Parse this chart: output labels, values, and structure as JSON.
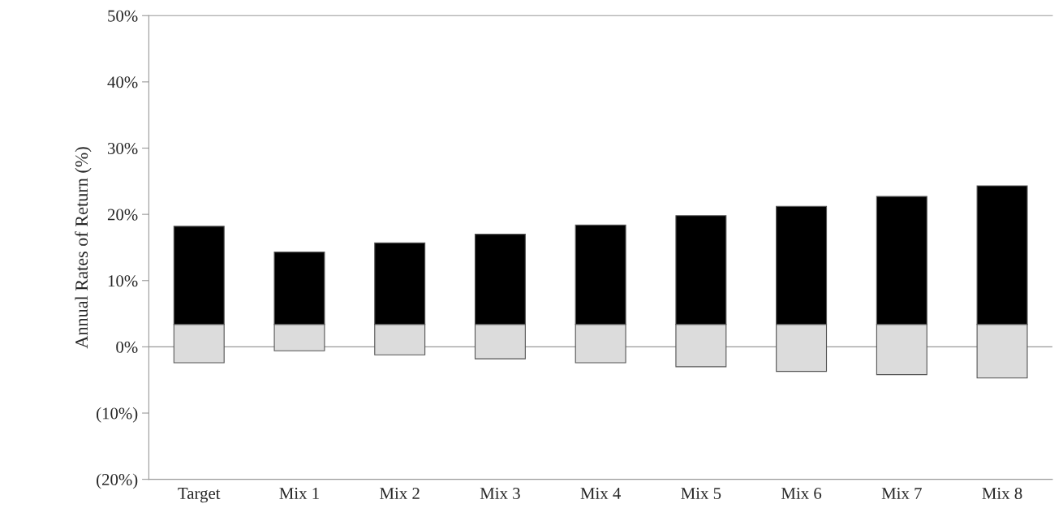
{
  "chart_data": {
    "type": "bar",
    "ylabel": "Annual Rates of Return (%)",
    "categories": [
      "Target",
      "Mix 1",
      "Mix 2",
      "Mix 3",
      "Mix 4",
      "Mix 5",
      "Mix 6",
      "Mix 7",
      "Mix 8"
    ],
    "series": [
      {
        "color": "#dcdcdc",
        "base": [
          -2.4,
          -0.6,
          -1.2,
          -1.8,
          -2.4,
          -3.0,
          -3.7,
          -4.2,
          -4.7
        ],
        "values": [
          5.8,
          4.0,
          4.6,
          5.2,
          5.8,
          6.4,
          7.1,
          7.6,
          8.1
        ]
      },
      {
        "color": "#000000",
        "base": [
          3.4,
          3.4,
          3.4,
          3.4,
          3.4,
          3.4,
          3.4,
          3.4,
          3.4
        ],
        "values": [
          14.8,
          10.9,
          12.3,
          13.6,
          15.0,
          16.4,
          17.8,
          19.3,
          20.9
        ]
      }
    ],
    "ylim": [
      -20,
      50
    ],
    "yticks": [
      {
        "value": -20,
        "label": "(20%)"
      },
      {
        "value": -10,
        "label": "(10%)"
      },
      {
        "value": 0,
        "label": "0%"
      },
      {
        "value": 10,
        "label": "10%"
      },
      {
        "value": 20,
        "label": "20%"
      },
      {
        "value": 30,
        "label": "30%"
      },
      {
        "value": 40,
        "label": "40%"
      },
      {
        "value": 50,
        "label": "50%"
      }
    ],
    "ref_lines": [
      {
        "axis": "y",
        "value": 0,
        "color": "#999999"
      }
    ],
    "grid": false
  }
}
